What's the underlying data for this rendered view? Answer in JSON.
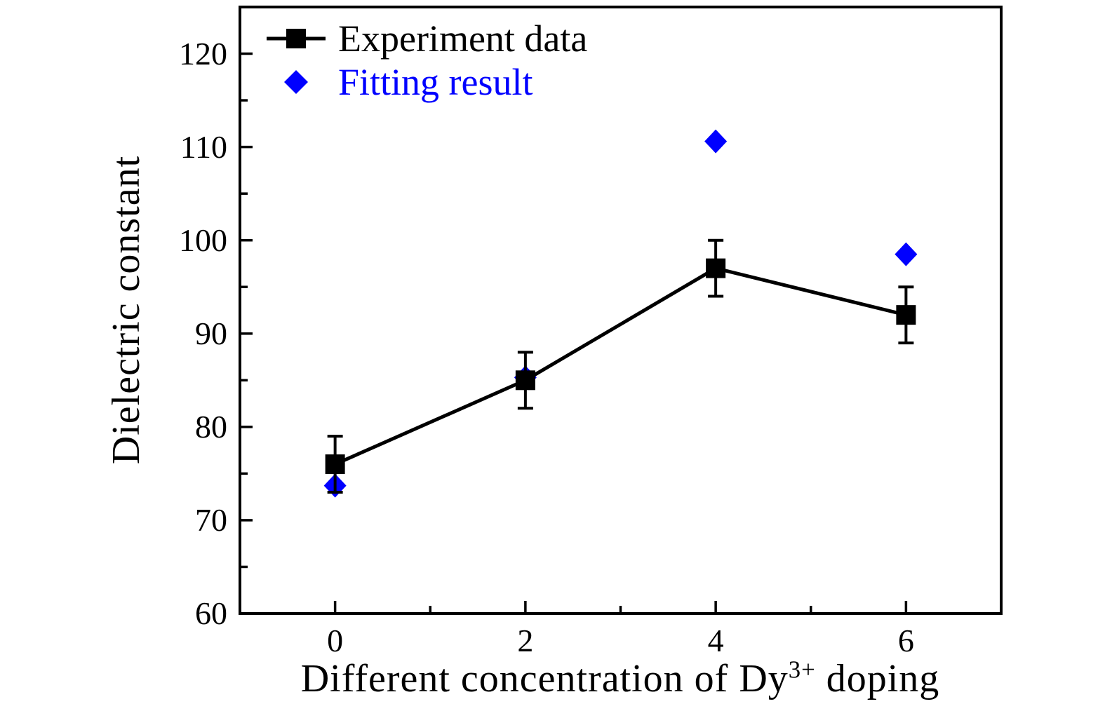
{
  "figure": {
    "background": "#ffffff",
    "frame_color": "#000000"
  },
  "chart_data": {
    "type": "line",
    "title": "",
    "xlabel_prefix": "Different concentration of Dy",
    "xlabel_sup": "3+",
    "xlabel_suffix": " doping",
    "ylabel": "Dielectric constant",
    "xlim": [
      -1,
      7
    ],
    "ylim": [
      60,
      125
    ],
    "xticks": [
      0,
      2,
      4,
      6
    ],
    "yticks": [
      60,
      70,
      80,
      90,
      100,
      110,
      120
    ],
    "xminorticks": [
      1,
      3,
      5
    ],
    "yminorticks": [
      65,
      75,
      85,
      95,
      105,
      115
    ],
    "grid": false,
    "legend_position": "upper-left",
    "x": [
      0,
      2,
      4,
      6
    ],
    "series": [
      {
        "name": "Experiment data",
        "type": "line+scatter",
        "marker": "square",
        "color": "#000000",
        "values": [
          76,
          85,
          97,
          92
        ],
        "yerr": [
          3,
          3,
          3,
          3
        ],
        "z": 2
      },
      {
        "name": "Fitting result",
        "type": "scatter",
        "marker": "diamond",
        "color": "#0000ff",
        "values": [
          73.7,
          85.3,
          110.6,
          98.5
        ],
        "z": 1
      }
    ]
  }
}
